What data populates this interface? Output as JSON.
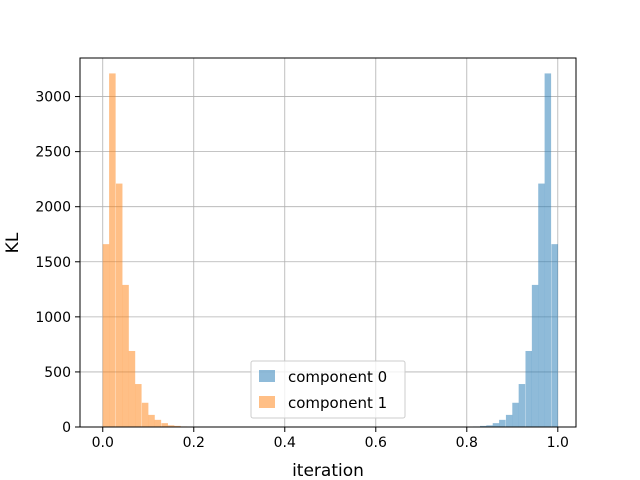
{
  "chart_data": {
    "type": "bar",
    "title": "",
    "xlabel": "iteration",
    "ylabel": "KL",
    "xlim": [
      -0.05,
      1.04
    ],
    "ylim": [
      0,
      3350
    ],
    "xticks": [
      "0.0",
      "0.2",
      "0.4",
      "0.6",
      "0.8",
      "1.0"
    ],
    "yticks": [
      "0",
      "500",
      "1000",
      "1500",
      "2000",
      "2500",
      "3000"
    ],
    "grid": true,
    "legend_position": "lower center",
    "bin_width": 0.01429,
    "series": [
      {
        "name": "component 0",
        "color": "#1f77b4",
        "opacity": 0.5,
        "bin_starts": [
          0.771,
          0.786,
          0.8,
          0.814,
          0.829,
          0.843,
          0.857,
          0.871,
          0.886,
          0.9,
          0.914,
          0.929,
          0.943,
          0.957,
          0.971,
          0.986
        ],
        "counts": [
          2,
          3,
          3,
          5,
          10,
          15,
          35,
          65,
          110,
          220,
          390,
          690,
          1290,
          2210,
          3210,
          1660
        ]
      },
      {
        "name": "component 1",
        "color": "#ff7f0e",
        "opacity": 0.5,
        "bin_starts": [
          0.0,
          0.014,
          0.029,
          0.043,
          0.057,
          0.071,
          0.086,
          0.1,
          0.114,
          0.129,
          0.143,
          0.157,
          0.171,
          0.186,
          0.2,
          0.214
        ],
        "counts": [
          1660,
          3210,
          2210,
          1290,
          690,
          390,
          220,
          110,
          65,
          35,
          15,
          10,
          5,
          3,
          3,
          2
        ]
      }
    ]
  }
}
